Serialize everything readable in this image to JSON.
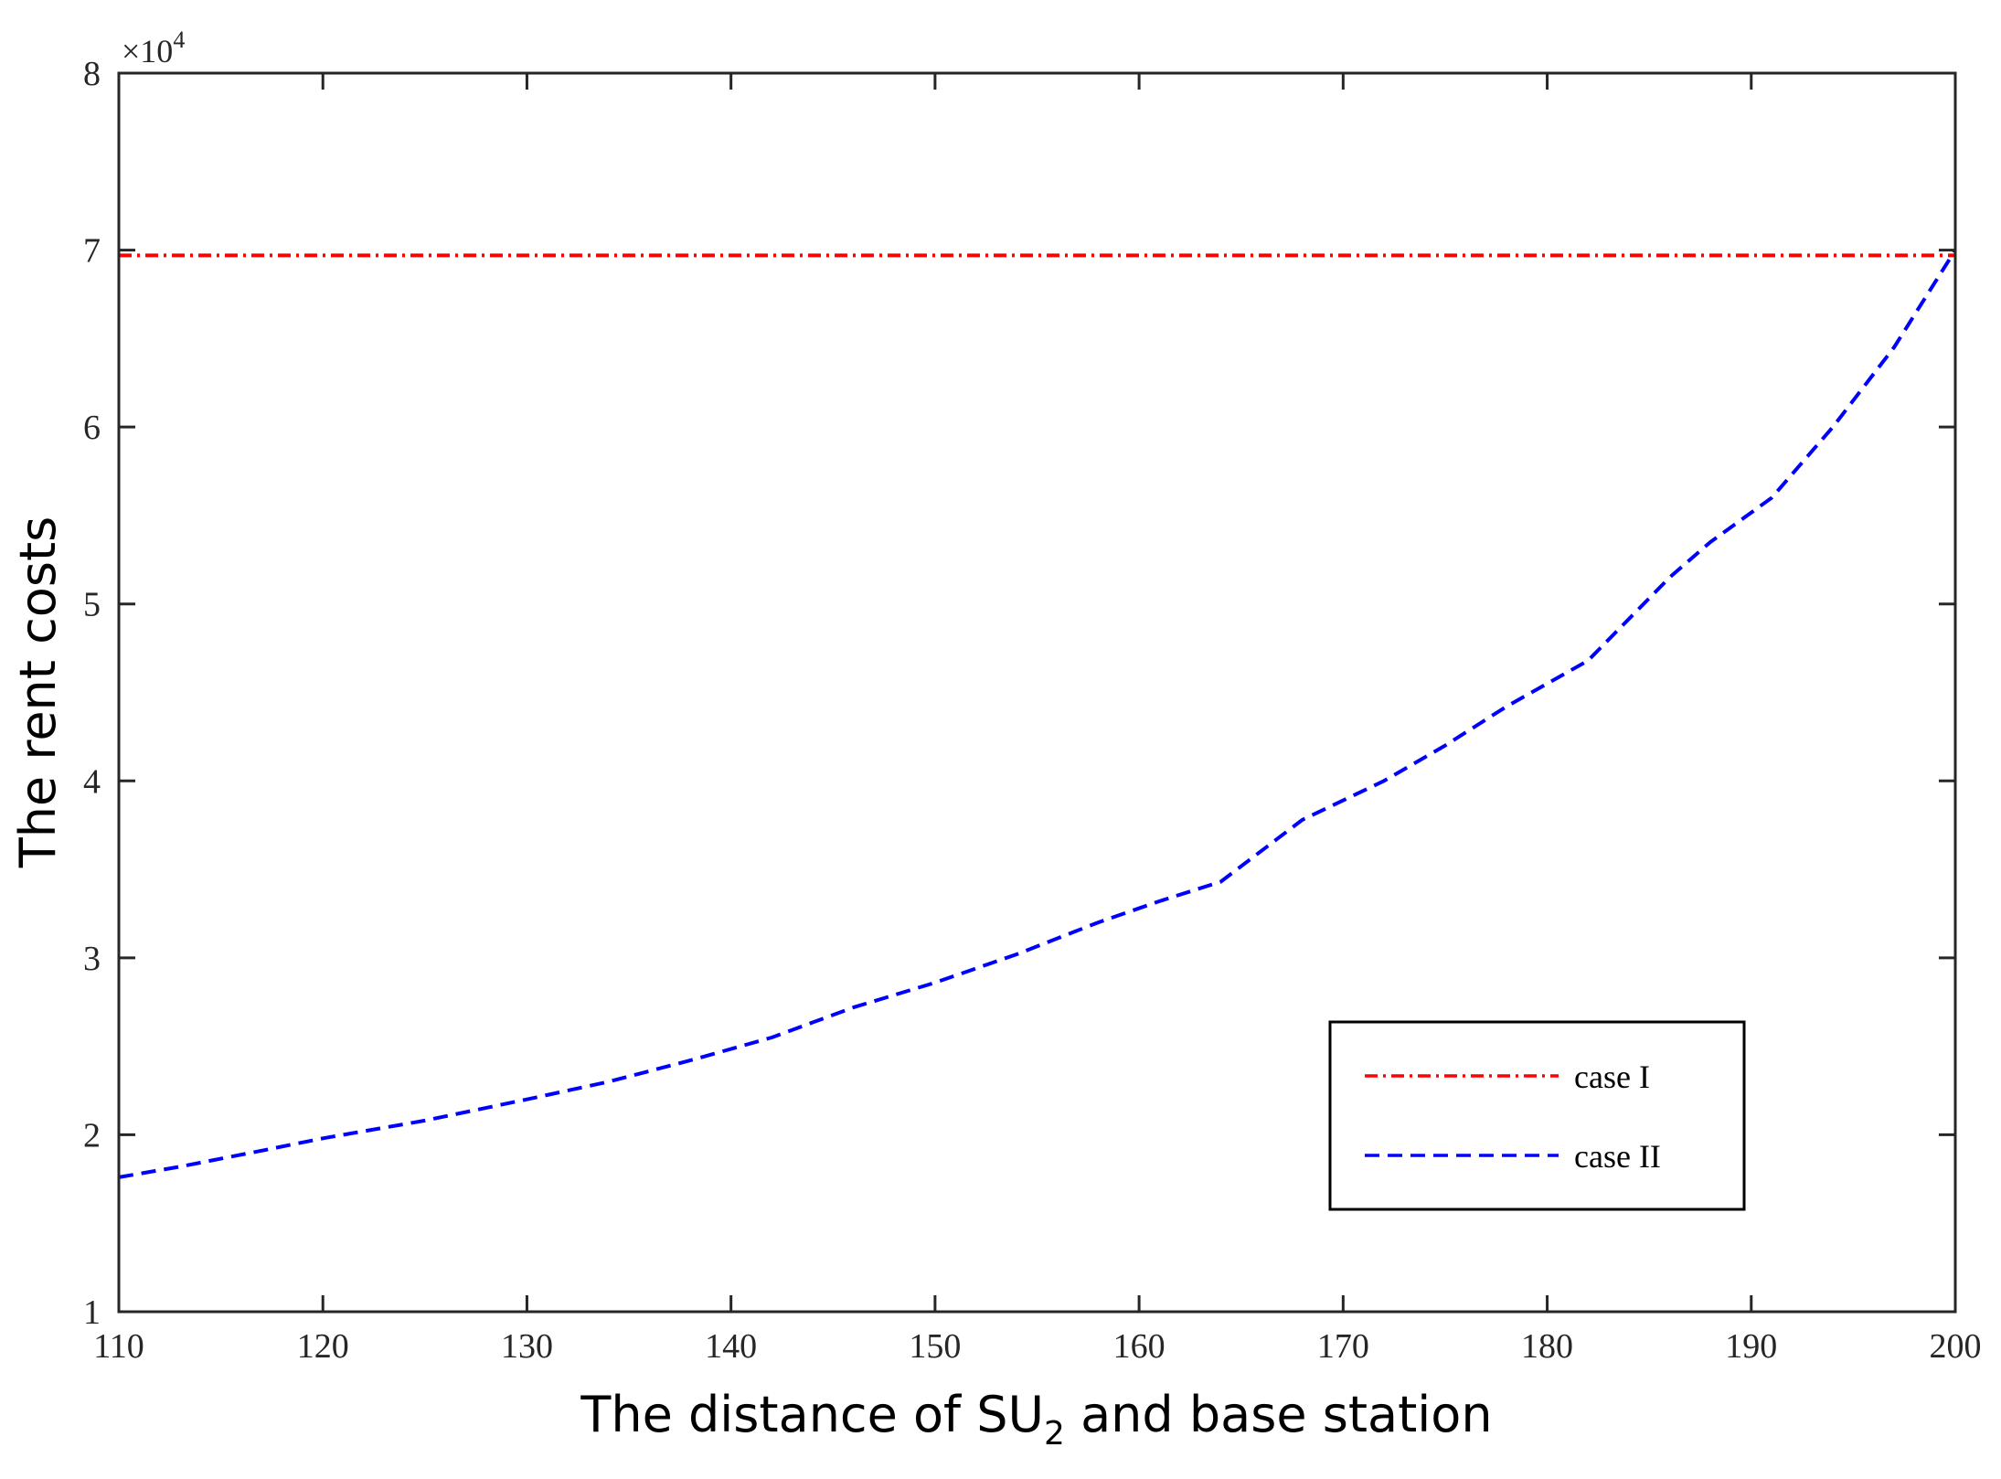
{
  "chart_data": {
    "type": "line",
    "xlabel_prefix": "The distance of SU",
    "xlabel_sub": "2",
    "xlabel_suffix": " and base station",
    "ylabel": "The rent costs",
    "y_multiplier_base": "×10",
    "y_multiplier_exp": "4",
    "xlim": [
      110,
      200
    ],
    "ylim": [
      1,
      8
    ],
    "x_ticks": [
      "110",
      "120",
      "130",
      "140",
      "150",
      "160",
      "170",
      "180",
      "190",
      "200"
    ],
    "y_ticks": [
      "1",
      "2",
      "3",
      "4",
      "5",
      "6",
      "7",
      "8"
    ],
    "series": [
      {
        "name": "case I",
        "color": "#ff0000",
        "style": "dashdot",
        "x": [
          110,
          200
        ],
        "y": [
          6.97,
          6.97
        ]
      },
      {
        "name": "case II",
        "color": "#0000ff",
        "style": "dashed",
        "x": [
          110,
          113,
          117,
          120,
          125,
          130,
          134,
          138,
          142,
          146,
          150,
          154,
          158,
          161,
          164,
          168,
          172,
          175,
          178,
          182,
          186,
          188,
          191,
          194,
          197,
          200
        ],
        "y": [
          1.76,
          1.82,
          1.91,
          1.98,
          2.08,
          2.2,
          2.3,
          2.42,
          2.55,
          2.72,
          2.86,
          3.02,
          3.2,
          3.32,
          3.43,
          3.78,
          4.0,
          4.2,
          4.42,
          4.68,
          5.15,
          5.35,
          5.6,
          6.0,
          6.45,
          7.0
        ]
      }
    ],
    "legend_position": "bottom-right"
  }
}
